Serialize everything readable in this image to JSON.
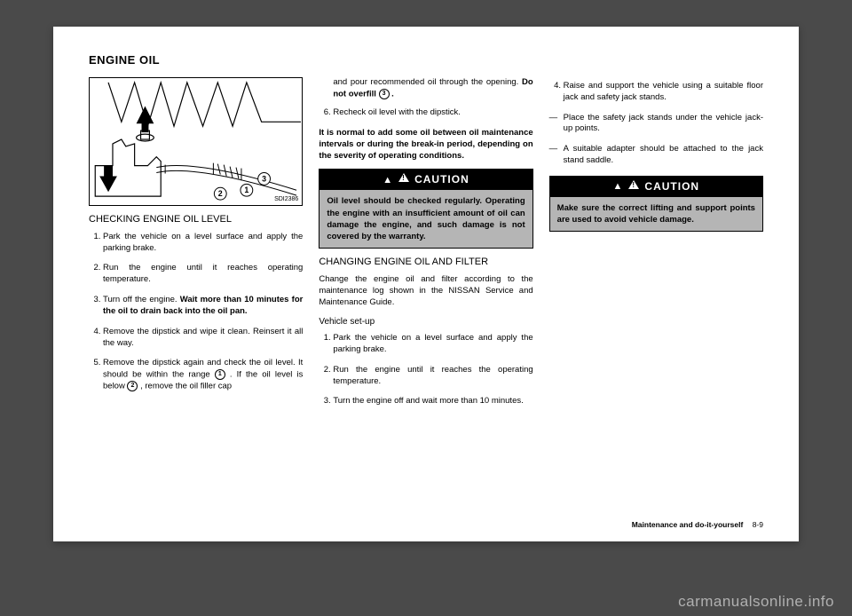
{
  "header": "ENGINE OIL",
  "illustration_label": "SDI2386",
  "col1": {
    "subhead": "CHECKING ENGINE OIL LEVEL",
    "steps": [
      "Park the vehicle on a level surface and apply the parking brake.",
      "Run the engine until it reaches operating temperature.",
      "Turn off the engine. <b>Wait more than 10 minutes for the oil to drain back into the oil pan.</b>",
      "Remove the dipstick and wipe it clean. Reinsert it all the way.",
      "Remove the dipstick again and check the oil level. It should be within the range <span class=\"circled\">1</span> . If the oil level is below <span class=\"circled\">2</span> , remove the oil filler cap"
    ]
  },
  "col2": {
    "top_para": "and pour recommended oil through the opening. <b>Do not overfill</b> <span class=\"circled\">3</span> <b>.</b>",
    "step6": "Recheck oil level with the dipstick.",
    "bold_para": "It is normal to add some oil between oil maintenance intervals or during the break-in period, depending on the severity of operating conditions.",
    "caution_title": "CAUTION",
    "caution_body": "Oil level should be checked regularly. Operating the engine with an insufficient amount of oil can damage the engine, and such damage is not covered by the warranty.",
    "subhead": "CHANGING ENGINE OIL AND FILTER",
    "para": "Change the engine oil and filter according to the maintenance log shown in the NISSAN Service and Maintenance Guide.",
    "subhead2": "Vehicle set-up",
    "steps": [
      "Park the vehicle on a level surface and apply the parking brake.",
      "Run the engine until it reaches the operating temperature.",
      "Turn the engine off and wait more than 10 minutes."
    ]
  },
  "col3": {
    "step4": "Raise and support the vehicle using a suitable floor jack and safety jack stands.",
    "dashes": [
      "Place the safety jack stands under the vehicle jack-up points.",
      "A suitable adapter should be attached to the jack stand saddle."
    ],
    "caution_title": "CAUTION",
    "caution_body": "Make sure the correct lifting and support points are used to avoid vehicle damage."
  },
  "footer_section": "Maintenance and do-it-yourself",
  "footer_page": "8-9",
  "watermark": "carmanualsonline.info"
}
